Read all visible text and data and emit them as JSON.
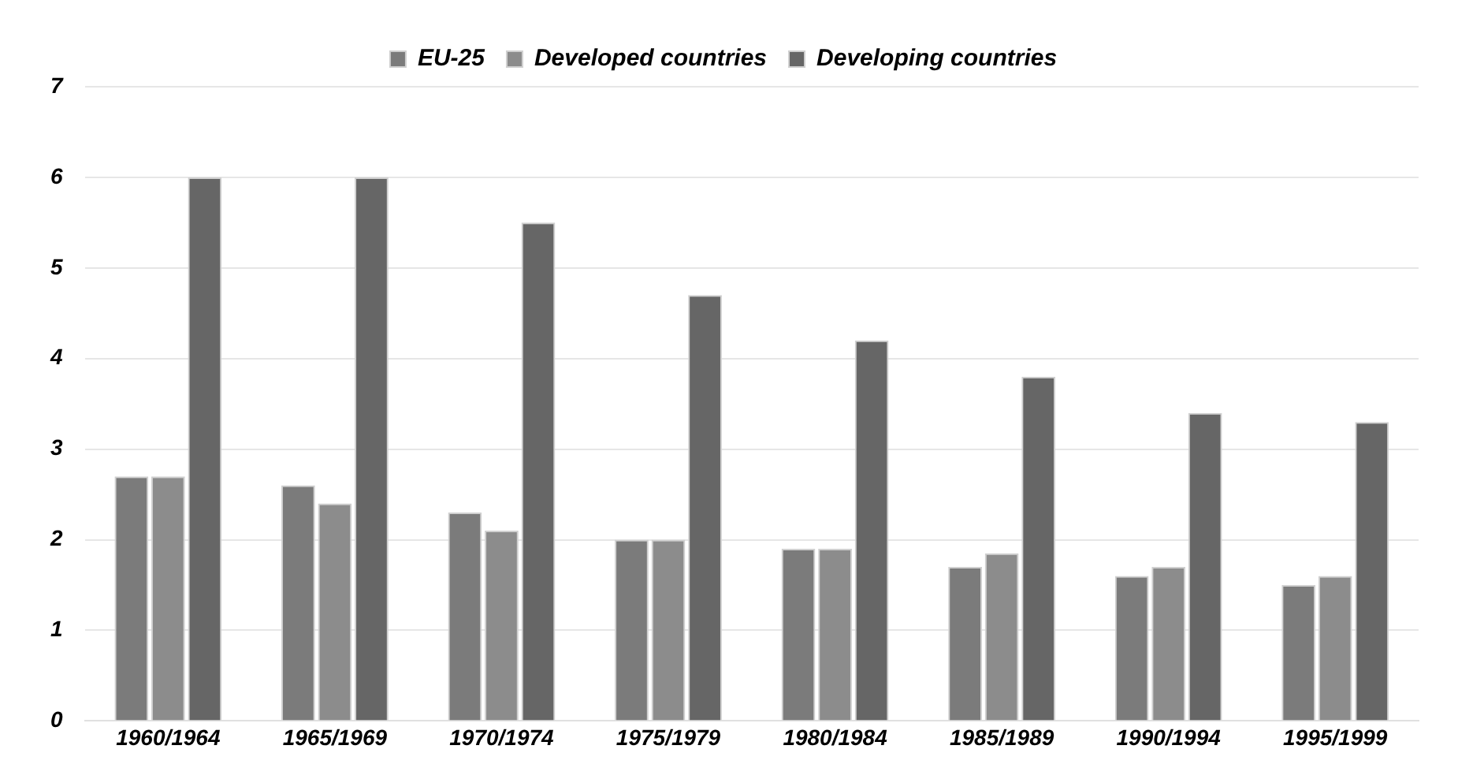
{
  "chart_data": {
    "type": "bar",
    "categories": [
      "1960/1964",
      "1965/1969",
      "1970/1974",
      "1975/1979",
      "1980/1984",
      "1985/1989",
      "1990/1994",
      "1995/1999"
    ],
    "series": [
      {
        "name": "EU-25",
        "color": "#7b7b7b",
        "values": [
          2.7,
          2.6,
          2.3,
          2.0,
          1.9,
          1.7,
          1.6,
          1.5
        ]
      },
      {
        "name": "Developed countries",
        "color": "#8c8c8c",
        "values": [
          2.7,
          2.4,
          2.1,
          2.0,
          1.9,
          1.85,
          1.7,
          1.6
        ]
      },
      {
        "name": "Developing countries",
        "color": "#666666",
        "values": [
          6.0,
          6.0,
          5.5,
          4.7,
          4.2,
          3.8,
          3.4,
          3.3
        ]
      }
    ],
    "ylim": [
      0,
      7
    ],
    "yticks": [
      0,
      1,
      2,
      3,
      4,
      5,
      6,
      7
    ],
    "grid": "y",
    "legend": "top"
  }
}
